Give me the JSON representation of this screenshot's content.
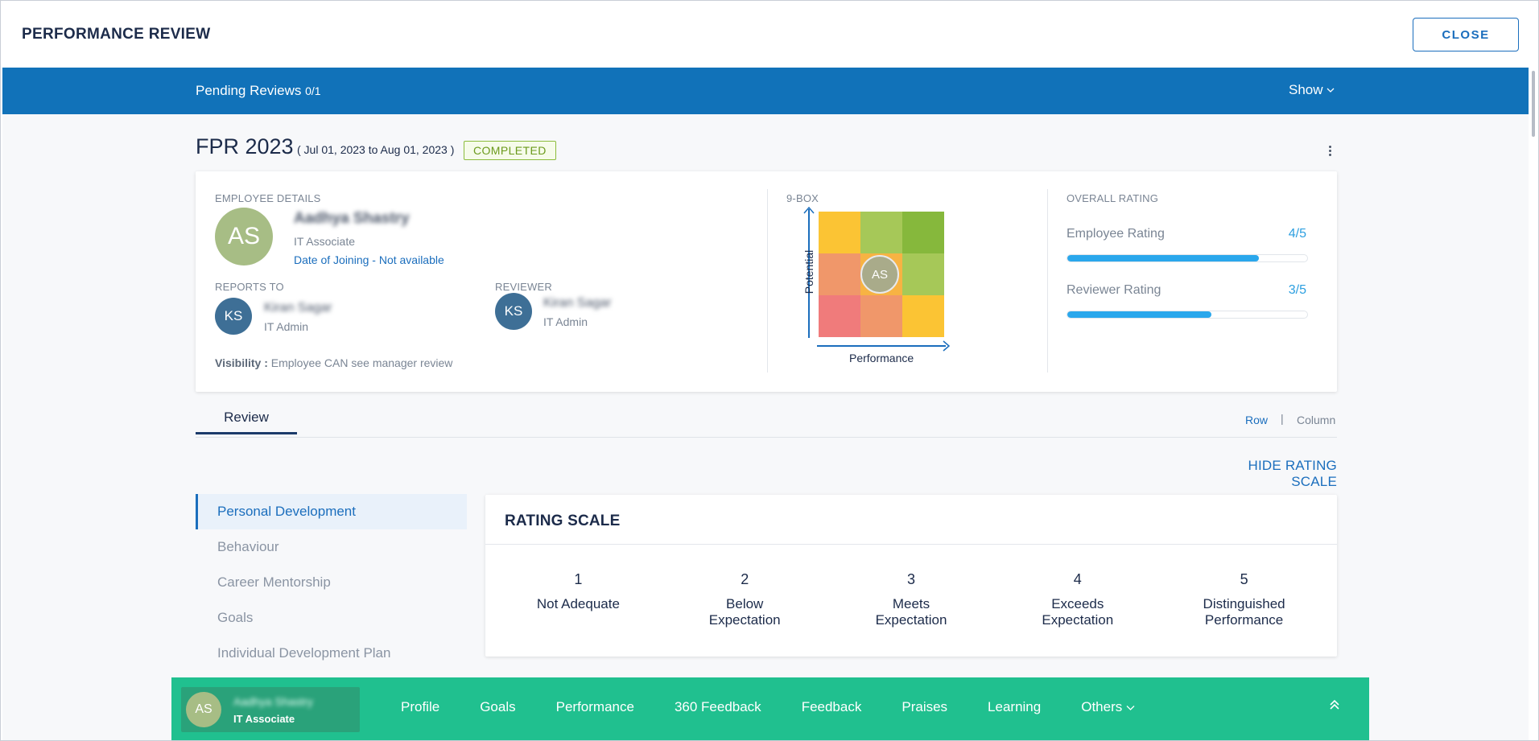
{
  "header": {
    "title": "PERFORMANCE REVIEW",
    "close_label": "CLOSE"
  },
  "pending_bar": {
    "label": "Pending Reviews",
    "count": "0/1",
    "show_label": "Show"
  },
  "cycle": {
    "title": "FPR 2023",
    "range": "( Jul 01, 2023 to Aug 01, 2023 )",
    "status": "COMPLETED"
  },
  "employee": {
    "section_label": "EMPLOYEE DETAILS",
    "initials": "AS",
    "name": "Aadhya Shastry",
    "role": "IT Associate",
    "doj": "Date of Joining - Not available"
  },
  "reports_to": {
    "section_label": "REPORTS TO",
    "initials": "KS",
    "name": "Kiran Sagar",
    "role": "IT Admin"
  },
  "reviewer": {
    "section_label": "REVIEWER",
    "initials": "KS",
    "name": "Kiran Sagar",
    "role": "IT Admin"
  },
  "visibility": {
    "label": "Visibility :",
    "value": "Employee CAN see manager review"
  },
  "nine_box": {
    "section_label": "9-BOX",
    "y_label": "Potential",
    "x_label": "Performance",
    "marker_initials": "AS",
    "cells": [
      "#fbc434",
      "#a6c858",
      "#86b83c",
      "#f0976a",
      "#f7b343",
      "#a6c858",
      "#f07b7b",
      "#f0976a",
      "#fbc434"
    ],
    "marker_cell": {
      "row": 2,
      "column": 2
    }
  },
  "overall_rating": {
    "section_label": "OVERALL RATING",
    "items": [
      {
        "label": "Employee Rating",
        "value": "4/5",
        "fraction": 0.8
      },
      {
        "label": "Reviewer Rating",
        "value": "3/5",
        "fraction": 0.6
      }
    ]
  },
  "tabs": {
    "review": "Review",
    "view_row": "Row",
    "separator": "|",
    "view_column": "Column",
    "hide_scale": "HIDE RATING SCALE"
  },
  "sidebar": {
    "items": [
      {
        "label": "Personal Development",
        "active": true
      },
      {
        "label": "Behaviour",
        "active": false
      },
      {
        "label": "Career Mentorship",
        "active": false
      },
      {
        "label": "Goals",
        "active": false
      },
      {
        "label": "Individual Development Plan",
        "active": false
      }
    ]
  },
  "rating_scale": {
    "title": "RATING SCALE",
    "items": [
      {
        "num": "1",
        "label": "Not Adequate"
      },
      {
        "num": "2",
        "label": "Below Expectation"
      },
      {
        "num": "3",
        "label": "Meets Expectation"
      },
      {
        "num": "4",
        "label": "Exceeds Expectation"
      },
      {
        "num": "5",
        "label": "Distinguished Performance"
      }
    ]
  },
  "bottom_nav": {
    "initials": "AS",
    "name": "Aadhya Shastry",
    "role": "IT Associate",
    "items": [
      "Profile",
      "Goals",
      "Performance",
      "360 Feedback",
      "Feedback",
      "Praises",
      "Learning",
      "Others"
    ]
  },
  "colors": {
    "primary_blue": "#1172b9",
    "link_blue": "#1b6ebd",
    "bottom_nav_green": "#20c08f",
    "completed_green": "#8cbc3c",
    "rating_fill": "#2aa7ec"
  }
}
